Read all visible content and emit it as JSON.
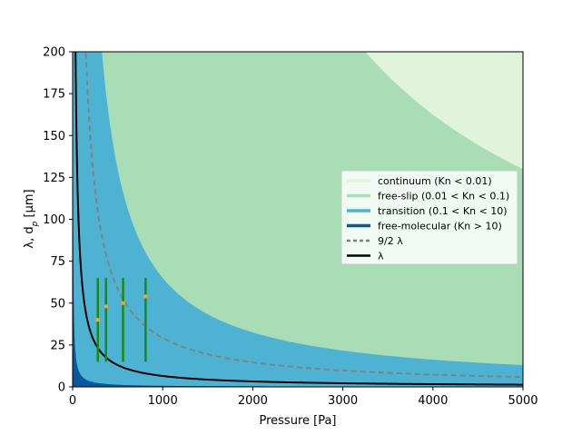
{
  "chart_data": {
    "type": "area",
    "xlabel": "Pressure [Pa]",
    "ylabel": "λ, d_p [μm]",
    "ylabel_main": "λ, d",
    "ylabel_sub": "p",
    "ylabel_unit": " [μm]",
    "xlim": [
      0,
      5000
    ],
    "ylim": [
      0,
      200
    ],
    "x_ticks": [
      0,
      1000,
      2000,
      3000,
      4000,
      5000
    ],
    "x_tick_labels": [
      "0",
      "1000",
      "2000",
      "3000",
      "4000",
      "5000"
    ],
    "y_ticks": [
      0,
      25,
      50,
      75,
      100,
      125,
      150,
      175,
      200
    ],
    "y_tick_labels": [
      "0",
      "25",
      "50",
      "75",
      "100",
      "125",
      "150",
      "175",
      "200"
    ],
    "grid": false,
    "legend_position": "center-right",
    "mean_free_path_coefficient": 6500,
    "regions": [
      {
        "name": "continuum (Kn < 0.01)",
        "color": "#e0f3db",
        "kn_upper": 0.01
      },
      {
        "name": "free-slip (0.01 < Kn < 0.1)",
        "color": "#a8ddb5",
        "kn_lower": 0.01,
        "kn_upper": 0.1
      },
      {
        "name": "transition (0.1 < Kn < 10)",
        "color": "#4eb3d3",
        "kn_lower": 0.1,
        "kn_upper": 10
      },
      {
        "name": "free-molecular (Kn > 10)",
        "color": "#08589e",
        "kn_lower": 10
      }
    ],
    "series": [
      {
        "name": "9/2 λ",
        "color": "#808080",
        "style": "dashed",
        "multiplier": 4.5
      },
      {
        "name": "λ",
        "color": "#000000",
        "style": "solid",
        "multiplier": 1
      }
    ],
    "error_bars": [
      {
        "x": 280,
        "y": 40,
        "y_low": 15,
        "y_high": 65
      },
      {
        "x": 370,
        "y": 48,
        "y_low": 15,
        "y_high": 65
      },
      {
        "x": 560,
        "y": 50,
        "y_low": 15,
        "y_high": 65
      },
      {
        "x": 810,
        "y": 54,
        "y_low": 15,
        "y_high": 65
      }
    ],
    "error_bar_color": "#1a8a1a",
    "marker_color": "#f5a623"
  }
}
